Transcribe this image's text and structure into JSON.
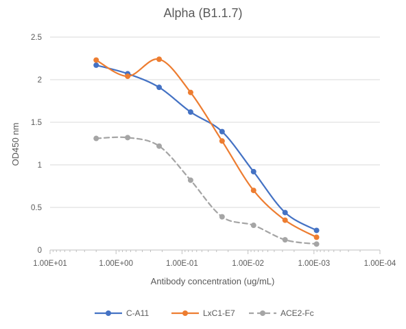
{
  "chart_data": {
    "type": "line",
    "title": "Alpha (B1.1.7)",
    "xlabel": "Antibody concentration (ug/mL)",
    "ylabel": "OD450 nm",
    "x_scale": "log",
    "x_reversed": true,
    "xlim": [
      10,
      0.0001
    ],
    "ylim": [
      0,
      2.5
    ],
    "x_ticks": [
      10,
      1,
      0.1,
      0.01,
      0.001,
      0.0001
    ],
    "x_tick_labels": [
      "1.00E+01",
      "1.00E+00",
      "1.00E-01",
      "1.00E-02",
      "1.00E-03",
      "1.00E-04"
    ],
    "y_ticks": [
      0,
      0.5,
      1,
      1.5,
      2,
      2.5
    ],
    "y_tick_labels": [
      "0",
      "0.5",
      "1",
      "1.5",
      "2",
      "2.5"
    ],
    "grid": "horizontal",
    "legend_position": "bottom",
    "x": [
      2,
      0.667,
      0.222,
      0.0741,
      0.0247,
      0.00823,
      0.00274,
      0.000914
    ],
    "series": [
      {
        "name": "C-A11",
        "color": "#4472C4",
        "dash": "solid",
        "values": [
          2.17,
          2.07,
          1.91,
          1.62,
          1.39,
          0.92,
          0.44,
          0.23
        ]
      },
      {
        "name": "LxC1-E7",
        "color": "#ED7D31",
        "dash": "solid",
        "values": [
          2.23,
          2.04,
          2.24,
          1.85,
          1.28,
          0.7,
          0.35,
          0.15
        ]
      },
      {
        "name": "ACE2-Fc",
        "color": "#A5A5A5",
        "dash": "dashed",
        "values": [
          1.31,
          1.32,
          1.22,
          0.82,
          0.39,
          0.29,
          0.12,
          0.07
        ]
      }
    ]
  }
}
